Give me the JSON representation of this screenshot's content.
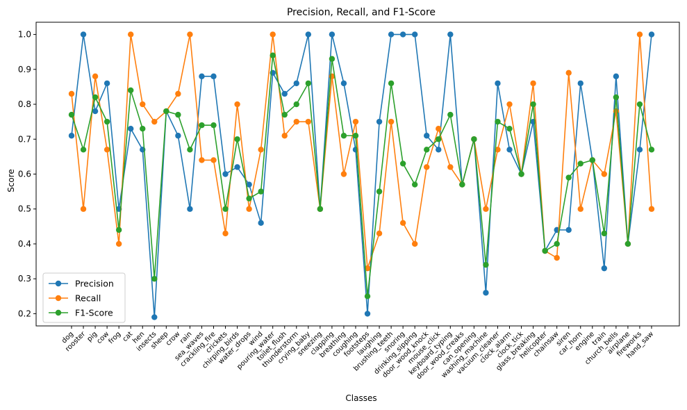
{
  "chart_data": {
    "type": "line",
    "title": "Precision, Recall, and F1-Score",
    "xlabel": "Classes",
    "ylabel": "Score",
    "ylim": [
      0.165,
      1.035
    ],
    "yticks": [
      0.2,
      0.3,
      0.4,
      0.5,
      0.6,
      0.7,
      0.8,
      0.9,
      1.0
    ],
    "ytick_labels": [
      "0.2",
      "0.3",
      "0.4",
      "0.5",
      "0.6",
      "0.7",
      "0.8",
      "0.9",
      "1.0"
    ],
    "grid": false,
    "legend_position": "lower-left",
    "categories": [
      "dog",
      "rooster",
      "pig",
      "cow",
      "frog",
      "cat",
      "hen",
      "insects",
      "sheep",
      "crow",
      "rain",
      "sea_waves",
      "crackling_fire",
      "crickets",
      "chirping_birds",
      "water_drops",
      "wind",
      "pouring_water",
      "toilet_flush",
      "thunderstorm",
      "crying_baby",
      "sneezing",
      "clapping",
      "breathing",
      "coughing",
      "footsteps",
      "laughing",
      "brushing_teeth",
      "snoring",
      "drinking_sipping",
      "door_wood_knock",
      "mouse_click",
      "keyboard_typing",
      "door_wood_creaks",
      "can_opening",
      "washing_machine",
      "vacuum_cleaner",
      "clock_alarm",
      "clock_tick",
      "glass_breaking",
      "helicopter",
      "chainsaw",
      "siren",
      "car_horn",
      "engine",
      "train",
      "church_bells",
      "airplane",
      "fireworks",
      "hand_saw"
    ],
    "series": [
      {
        "name": "Precision",
        "color": "#1f77b4",
        "values": [
          0.71,
          1.0,
          0.78,
          0.86,
          0.5,
          0.73,
          0.67,
          0.19,
          0.78,
          0.71,
          0.5,
          0.88,
          0.88,
          0.6,
          0.62,
          0.57,
          0.46,
          0.89,
          0.83,
          0.86,
          1.0,
          0.5,
          1.0,
          0.86,
          0.67,
          0.2,
          0.75,
          1.0,
          1.0,
          1.0,
          0.71,
          0.67,
          1.0,
          0.57,
          0.7,
          0.26,
          0.86,
          0.67,
          0.6,
          0.75,
          0.38,
          0.44,
          0.44,
          0.86,
          0.64,
          0.33,
          0.88,
          0.4,
          0.67,
          1.0
        ]
      },
      {
        "name": "Recall",
        "color": "#ff7f0e",
        "values": [
          0.83,
          0.5,
          0.88,
          0.67,
          0.4,
          1.0,
          0.8,
          0.75,
          0.78,
          0.83,
          1.0,
          0.64,
          0.64,
          0.43,
          0.8,
          0.5,
          0.67,
          1.0,
          0.71,
          0.75,
          0.75,
          0.5,
          0.88,
          0.6,
          0.75,
          0.33,
          0.43,
          0.75,
          0.46,
          0.4,
          0.62,
          0.73,
          0.62,
          0.57,
          0.7,
          0.5,
          0.67,
          0.8,
          0.6,
          0.86,
          0.38,
          0.36,
          0.89,
          0.5,
          0.64,
          0.6,
          0.78,
          0.4,
          1.0,
          0.5
        ]
      },
      {
        "name": "F1-Score",
        "color": "#2ca02c",
        "values": [
          0.77,
          0.67,
          0.82,
          0.75,
          0.44,
          0.84,
          0.73,
          0.3,
          0.78,
          0.77,
          0.67,
          0.74,
          0.74,
          0.5,
          0.7,
          0.53,
          0.55,
          0.94,
          0.77,
          0.8,
          0.86,
          0.5,
          0.93,
          0.71,
          0.71,
          0.25,
          0.55,
          0.86,
          0.63,
          0.57,
          0.67,
          0.7,
          0.77,
          0.57,
          0.7,
          0.34,
          0.75,
          0.73,
          0.6,
          0.8,
          0.38,
          0.4,
          0.59,
          0.63,
          0.64,
          0.43,
          0.82,
          0.4,
          0.8,
          0.67
        ]
      }
    ]
  }
}
